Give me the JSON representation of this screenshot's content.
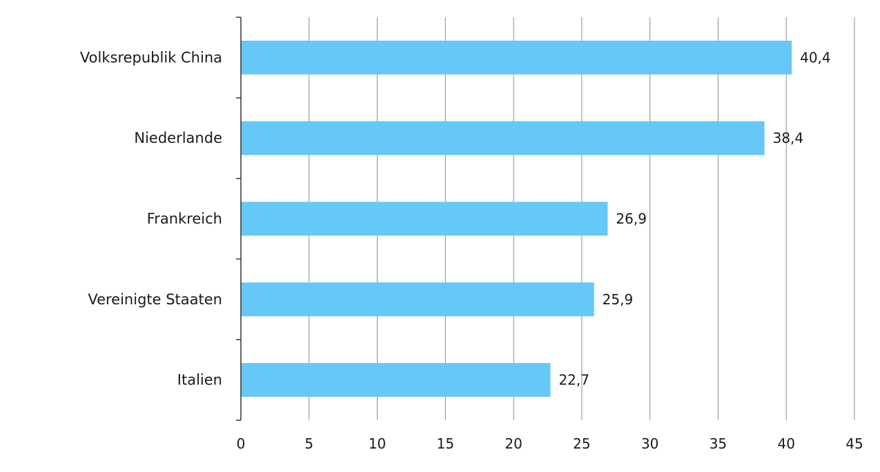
{
  "chart_data": {
    "type": "bar",
    "orientation": "horizontal",
    "categories": [
      "Volksrepublik China",
      "Niederlande",
      "Frankreich",
      "Vereinigte Staaten",
      "Italien"
    ],
    "values": [
      40.4,
      38.4,
      26.9,
      25.9,
      22.7
    ],
    "value_labels": [
      "40,4",
      "38,4",
      "26,9",
      "25,9",
      "22,7"
    ],
    "xlim": [
      0,
      45
    ],
    "x_ticks": [
      0,
      5,
      10,
      15,
      20,
      25,
      30,
      35,
      40,
      45
    ],
    "x_tick_labels": [
      "0",
      "5",
      "10",
      "15",
      "20",
      "25",
      "30",
      "35",
      "40",
      "45"
    ],
    "grid": "vertical",
    "title": "",
    "xlabel": "",
    "ylabel": "",
    "colors": {
      "bar": "#66c8f7",
      "grid": "#8c8c8c",
      "axis": "#333333"
    }
  }
}
